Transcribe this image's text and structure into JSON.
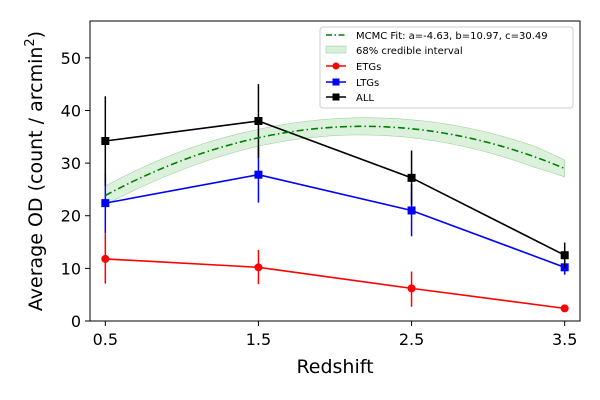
{
  "chart_data": {
    "type": "line",
    "title": "",
    "xlabel": "Redshift",
    "ylabel": "Average OD (count / arcmin²)",
    "ylabel_main": "Average OD (count / arcmin",
    "ylabel_sup": "2",
    "ylabel_end": ")",
    "xlim": [
      0.4,
      3.6
    ],
    "ylim": [
      0,
      57
    ],
    "xticks": [
      0.5,
      1.5,
      2.5,
      3.5
    ],
    "xtick_labels": [
      "0.5",
      "1.5",
      "2.5",
      "3.5"
    ],
    "yticks": [
      0,
      10,
      20,
      30,
      40,
      50
    ],
    "ytick_labels": [
      "0",
      "10",
      "20",
      "30",
      "40",
      "50"
    ],
    "grid": false,
    "legend_position": "top-right",
    "legend": {
      "fit_label": "MCMC Fit: a=-4.63, b=10.97, c=30.49",
      "band_label": "68% credible interval",
      "etg_label": "ETGs",
      "ltg_label": "LTGs",
      "all_label": "ALL"
    },
    "fit": {
      "name": "MCMC Fit: a=-4.63, b=10.97, c=30.49",
      "a": -4.63,
      "b": 10.97,
      "c": 30.49,
      "x_range": [
        0.5,
        3.5
      ],
      "band_halfwidth": [
        1.8,
        1.8,
        1.6,
        1.6,
        1.7,
        1.9,
        2.0,
        1.6
      ],
      "band_x": [
        0.5,
        1.0,
        1.5,
        2.0,
        2.5,
        3.0,
        3.3,
        3.5
      ],
      "color": "#008000",
      "band_color": "#bfe5bf"
    },
    "series": [
      {
        "name": "ETGs",
        "color": "#ff0000",
        "marker": "circle",
        "x": [
          0.5,
          1.5,
          2.5,
          3.5
        ],
        "y": [
          11.8,
          10.2,
          6.2,
          2.4
        ],
        "err_low": [
          4.7,
          3.2,
          3.5,
          0.6
        ],
        "err_high": [
          4.9,
          3.3,
          3.2,
          0.6
        ]
      },
      {
        "name": "LTGs",
        "color": "#0000ff",
        "marker": "square",
        "x": [
          0.5,
          1.5,
          2.5,
          3.5
        ],
        "y": [
          22.4,
          27.8,
          21.0,
          10.2
        ],
        "err_low": [
          5.7,
          5.3,
          4.9,
          1.4
        ],
        "err_high": [
          5.7,
          5.3,
          4.9,
          1.4
        ]
      },
      {
        "name": "ALL",
        "color": "#000000",
        "marker": "square",
        "x": [
          0.5,
          1.5,
          2.5,
          3.5
        ],
        "y": [
          34.2,
          38.0,
          27.2,
          12.5
        ],
        "err_low": [
          8.5,
          7.0,
          5.2,
          2.4
        ],
        "err_high": [
          8.5,
          7.0,
          5.2,
          2.4
        ]
      }
    ]
  }
}
